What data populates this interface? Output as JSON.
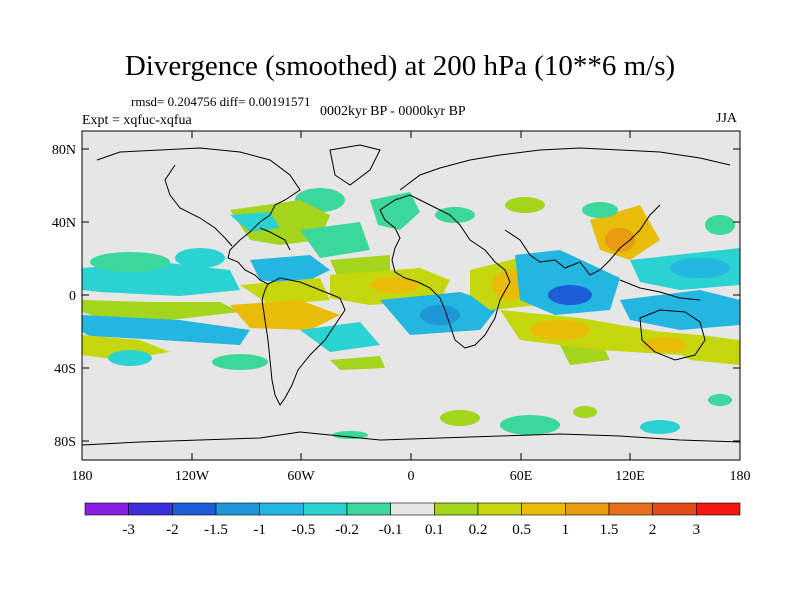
{
  "header": {
    "title": "Divergence (smoothed) at 200 hPa (10**6 m/s)",
    "stats": "rmsd= 0.204756 diff= 0.00191571",
    "period": "0002kyr BP - 0000kyr BP",
    "experiment": "Expt = xqfuc-xqfua",
    "season": "JJA"
  },
  "axes": {
    "lat_labels": [
      "80N",
      "40N",
      "0",
      "40S",
      "80S"
    ],
    "lon_labels": [
      "180",
      "120W",
      "60W",
      "0",
      "60E",
      "120E",
      "180"
    ]
  },
  "colorbar": {
    "labels": [
      "-3",
      "-2",
      "-1.5",
      "-1",
      "-0.5",
      "-0.2",
      "-0.1",
      "0.1",
      "0.2",
      "0.5",
      "1",
      "1.5",
      "2",
      "3"
    ],
    "colors": [
      "#8a1ee6",
      "#3a2fd8",
      "#1d5ed8",
      "#1e96d8",
      "#23b6e0",
      "#2ad2d2",
      "#3cd79a",
      "#e6e6e6",
      "#a4d41c",
      "#c6d60c",
      "#e8bc08",
      "#e89a10",
      "#e6701a",
      "#e24a16",
      "#f01810"
    ]
  },
  "colors": {
    "land_background": "#e6e6e6",
    "coastline": "#000000",
    "frame": "#000000"
  },
  "chart_data": {
    "type": "heatmap",
    "title": "Divergence (smoothed) at 200 hPa (10**6 m/s)",
    "variable": "200 hPa divergence difference",
    "projection": "cylindrical equidistant",
    "lon_range": [
      -180,
      180
    ],
    "lat_range": [
      -90,
      90
    ],
    "levels": [
      -3,
      -2,
      -1.5,
      -1,
      -0.5,
      -0.2,
      -0.1,
      0.1,
      0.2,
      0.5,
      1,
      1.5,
      2,
      3
    ],
    "anomalies": [
      {
        "lon": -150,
        "lat": 20,
        "value": -0.3
      },
      {
        "lon": -160,
        "lat": -15,
        "value": -0.4
      },
      {
        "lon": -140,
        "lat": -25,
        "value": 0.3
      },
      {
        "lon": -95,
        "lat": 10,
        "value": -0.5
      },
      {
        "lon": -90,
        "lat": 37,
        "value": 0.4
      },
      {
        "lon": -60,
        "lat": -10,
        "value": -0.3
      },
      {
        "lon": -40,
        "lat": 15,
        "value": 0.3
      },
      {
        "lon": -25,
        "lat": 40,
        "value": -0.3
      },
      {
        "lon": -15,
        "lat": 5,
        "value": 0.6
      },
      {
        "lon": 5,
        "lat": -10,
        "value": -0.6
      },
      {
        "lon": 45,
        "lat": 0,
        "value": 0.8
      },
      {
        "lon": 75,
        "lat": 2,
        "value": -1.0
      },
      {
        "lon": 70,
        "lat": -18,
        "value": 0.5
      },
      {
        "lon": 110,
        "lat": 20,
        "value": 0.4
      },
      {
        "lon": 95,
        "lat": -10,
        "value": -0.6
      },
      {
        "lon": 150,
        "lat": 25,
        "value": -0.3
      },
      {
        "lon": 140,
        "lat": -25,
        "value": 0.4
      },
      {
        "lon": 20,
        "lat": -70,
        "value": 0.2
      },
      {
        "lon": 70,
        "lat": -75,
        "value": -0.2
      }
    ]
  }
}
